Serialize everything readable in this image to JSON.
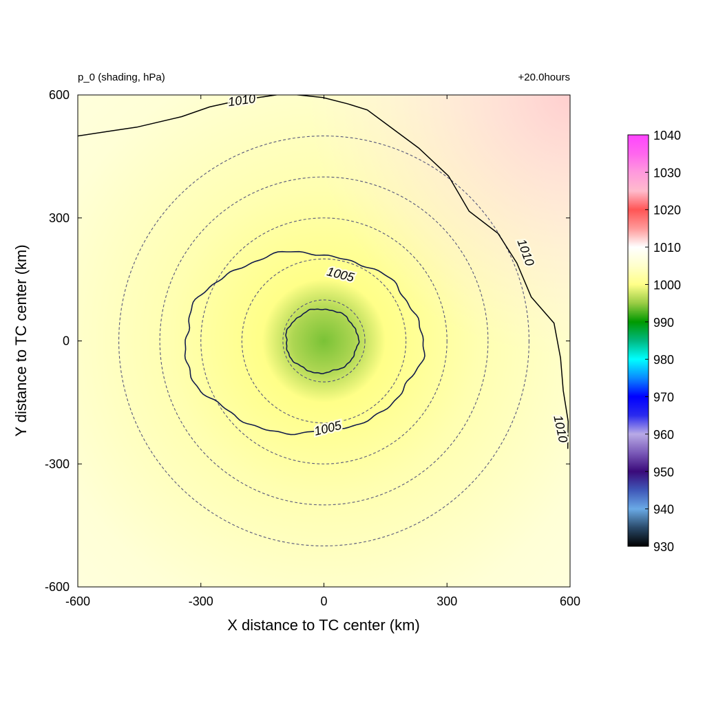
{
  "chart_data": {
    "type": "heatmap",
    "title_left": "p_0 (shading, hPa)",
    "title_right": "+20.0hours",
    "xlabel": "X distance to TC center (km)",
    "ylabel": "Y distance to TC center (km)",
    "xlim": [
      -600,
      600
    ],
    "ylim": [
      -600,
      600
    ],
    "xticks": [
      -600,
      -300,
      0,
      300,
      600
    ],
    "yticks": [
      -600,
      -300,
      0,
      300,
      600
    ],
    "colorbar": {
      "min": 930,
      "max": 1040,
      "ticks": [
        930,
        940,
        950,
        960,
        970,
        980,
        990,
        1000,
        1010,
        1020,
        1030,
        1040
      ],
      "stops": [
        {
          "value": 930,
          "color": "#000000"
        },
        {
          "value": 935,
          "color": "#2a4a6a"
        },
        {
          "value": 940,
          "color": "#6aaae6"
        },
        {
          "value": 945,
          "color": "#3f58b8"
        },
        {
          "value": 950,
          "color": "#3a0a7a"
        },
        {
          "value": 955,
          "color": "#7a5ab8"
        },
        {
          "value": 960,
          "color": "#b8aae6"
        },
        {
          "value": 965,
          "color": "#2a2aee"
        },
        {
          "value": 970,
          "color": "#0000ff"
        },
        {
          "value": 975,
          "color": "#0a8aff"
        },
        {
          "value": 980,
          "color": "#00ffff"
        },
        {
          "value": 985,
          "color": "#00b880"
        },
        {
          "value": 990,
          "color": "#009900"
        },
        {
          "value": 995,
          "color": "#99cc44"
        },
        {
          "value": 1000,
          "color": "#ffff88"
        },
        {
          "value": 1005,
          "color": "#ffffcc"
        },
        {
          "value": 1010,
          "color": "#ffffff"
        },
        {
          "value": 1015,
          "color": "#ff9999"
        },
        {
          "value": 1020,
          "color": "#ff5555"
        },
        {
          "value": 1025,
          "color": "#ffbbcc"
        },
        {
          "value": 1030,
          "color": "#ff99dd"
        },
        {
          "value": 1035,
          "color": "#ff66ee"
        },
        {
          "value": 1040,
          "color": "#ff44ff"
        }
      ]
    },
    "field": {
      "center_pressure": 994,
      "center_x": 0,
      "center_y": 0,
      "background_pressure": 1006,
      "northeast_pressure": 1012
    },
    "solid_contours": [
      {
        "level": 1005,
        "labels": [
          "1005",
          "1005"
        ]
      },
      {
        "level": 1010,
        "labels": [
          "1010",
          "1010",
          "1010"
        ]
      },
      {
        "level": 1000,
        "labels": []
      }
    ],
    "dashed_circles_radius_km": [
      100,
      200,
      300,
      400,
      500
    ],
    "colors": {
      "contour": "#000000",
      "inner_contour": "#101a4a",
      "dashed_circle": "#55557a"
    }
  }
}
